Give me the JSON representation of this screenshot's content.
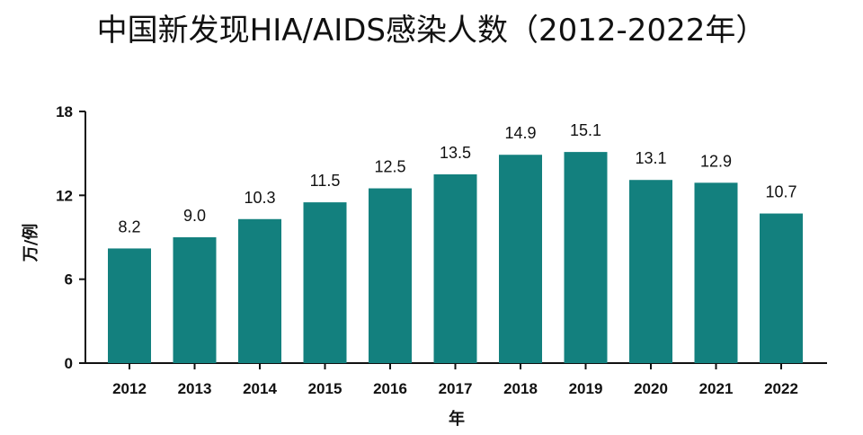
{
  "chart_data": {
    "type": "bar",
    "title": "中国新发现HIA/AIDS感染人数（2012-2022年）",
    "xlabel": "年",
    "ylabel": "万/例",
    "categories": [
      "2012",
      "2013",
      "2014",
      "2015",
      "2016",
      "2017",
      "2018",
      "2019",
      "2020",
      "2021",
      "2022"
    ],
    "values": [
      8.2,
      9.0,
      10.3,
      11.5,
      12.5,
      13.5,
      14.9,
      15.1,
      13.1,
      12.9,
      10.7
    ],
    "value_labels": [
      "8.2",
      "9.0",
      "10.3",
      "11.5",
      "12.5",
      "13.5",
      "14.9",
      "15.1",
      "13.1",
      "12.9",
      "10.7"
    ],
    "ylim": [
      0,
      18
    ],
    "yticks": [
      0,
      6,
      12,
      18
    ],
    "ytick_labels": [
      "0",
      "6",
      "12",
      "18"
    ],
    "grid": false,
    "legend": "none",
    "bar_color": "#13807E"
  }
}
